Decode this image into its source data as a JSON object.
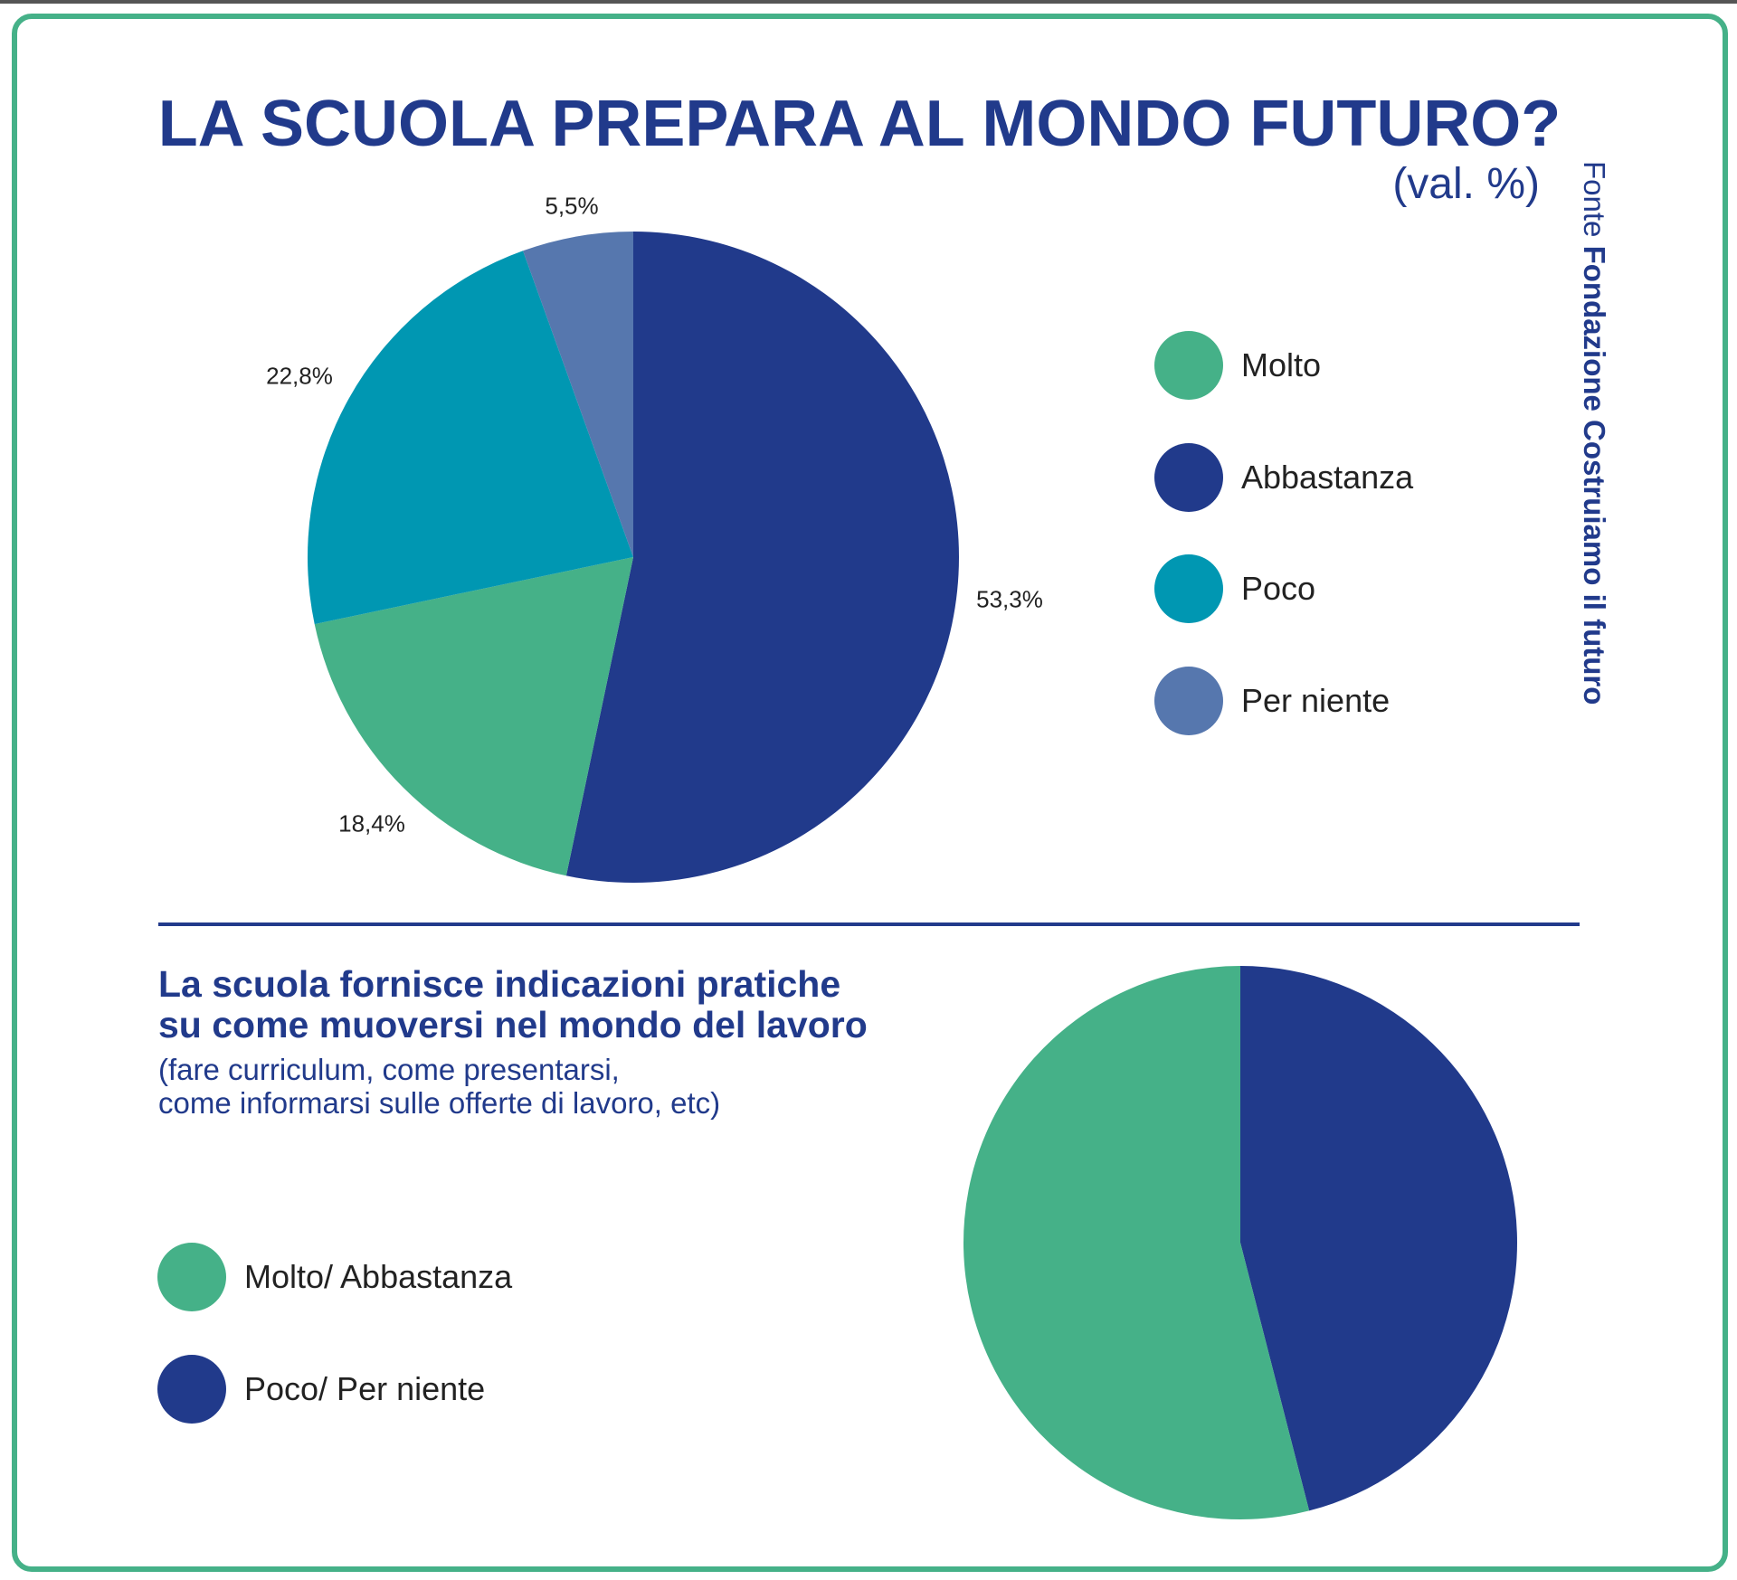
{
  "colors": {
    "dark_blue": "#213a8b",
    "green": "#45b188",
    "teal": "#0097b2",
    "light_blue": "#5677ae",
    "frame": "#45b188"
  },
  "chart_data": [
    {
      "type": "pie",
      "title": "LA SCUOLA PREPARA AL MONDO FUTURO?",
      "unit": "(val. %)",
      "source_prefix": "Fonte",
      "source_name": "Fondazione Costruiamo il futuro",
      "legend_position": "right",
      "slices": [
        {
          "name": "Abbastanza",
          "value": 53.3,
          "label": "53,3%",
          "color": "#213a8b"
        },
        {
          "name": "Molto",
          "value": 18.4,
          "label": "18,4%",
          "color": "#45b188"
        },
        {
          "name": "Poco",
          "value": 22.8,
          "label": "22,8%",
          "color": "#0097b2"
        },
        {
          "name": "Per niente",
          "value": 5.5,
          "label": "5,5%",
          "color": "#5677ae"
        }
      ],
      "legend": [
        {
          "name": "Molto",
          "color": "#45b188"
        },
        {
          "name": "Abbastanza",
          "color": "#213a8b"
        },
        {
          "name": "Poco",
          "color": "#0097b2"
        },
        {
          "name": "Per niente",
          "color": "#5677ae"
        }
      ]
    },
    {
      "type": "pie",
      "title_lines": [
        "La scuola fornisce indicazioni pratiche",
        "su come muoversi nel mondo del lavoro"
      ],
      "note_lines": [
        "(fare curriculum, come presentarsi,",
        "come informarsi sulle offerte di lavoro, etc)"
      ],
      "legend_position": "left",
      "slices": [
        {
          "name": "Poco/ Per niente",
          "value": 46,
          "color": "#213a8b"
        },
        {
          "name": "Molto/ Abbastanza",
          "value": 54,
          "color": "#45b188"
        }
      ],
      "legend": [
        {
          "name": "Molto/ Abbastanza",
          "color": "#45b188"
        },
        {
          "name": "Poco/ Per niente",
          "color": "#213a8b"
        }
      ]
    }
  ]
}
